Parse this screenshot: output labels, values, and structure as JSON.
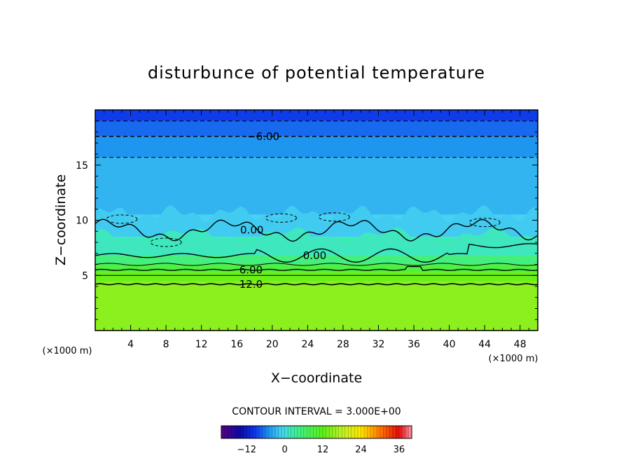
{
  "chart_data": {
    "type": "heatmap",
    "title": "disturbunce of potential temperature",
    "xlabel": "X−coordinate",
    "ylabel": "Z−coordinate",
    "x_unit": "(×1000 m)",
    "y_unit": "(×1000 m)",
    "xlim": [
      0,
      50
    ],
    "ylim": [
      0,
      20
    ],
    "x_ticks": [
      4,
      8,
      12,
      16,
      20,
      24,
      28,
      32,
      36,
      40,
      44,
      48
    ],
    "y_ticks": [
      5,
      10,
      15
    ],
    "contour_interval_text": "CONTOUR INTERVAL = 3.000E+00",
    "field_bands": [
      {
        "z_from": 0,
        "z_to": 4.4,
        "value": 15
      },
      {
        "z_from": 4.4,
        "z_to": 5.3,
        "value": 13
      },
      {
        "z_from": 5.3,
        "z_to": 6.0,
        "value": 9
      },
      {
        "z_from": 6.0,
        "z_to": 6.8,
        "value": 5
      },
      {
        "z_from": 6.8,
        "z_to": 8.5,
        "value": 2
      },
      {
        "z_from": 8.5,
        "z_to": 10.5,
        "value": -1
      },
      {
        "z_from": 10.5,
        "z_to": 15.7,
        "value": -3
      },
      {
        "z_from": 15.7,
        "z_to": 17.6,
        "value": -5
      },
      {
        "z_from": 17.6,
        "z_to": 19.0,
        "value": -7
      },
      {
        "z_from": 19.0,
        "z_to": 20,
        "value": -9
      }
    ],
    "contour_labels": [
      {
        "text": "−6.00",
        "x": 19,
        "z": 17.6
      },
      {
        "text": "0.00",
        "x": 17.7,
        "z": 9.1
      },
      {
        "text": "0.00",
        "x": 24.8,
        "z": 6.8
      },
      {
        "text": "6.00",
        "x": 17.6,
        "z": 5.5
      },
      {
        "text": "12.0",
        "x": 17.6,
        "z": 4.2
      }
    ],
    "colorbar": {
      "min": -20,
      "max": 40,
      "tick_values": [
        -12,
        0,
        12,
        24,
        36
      ],
      "tick_labels": [
        "−12",
        "0",
        "12",
        "24",
        "36"
      ]
    }
  }
}
